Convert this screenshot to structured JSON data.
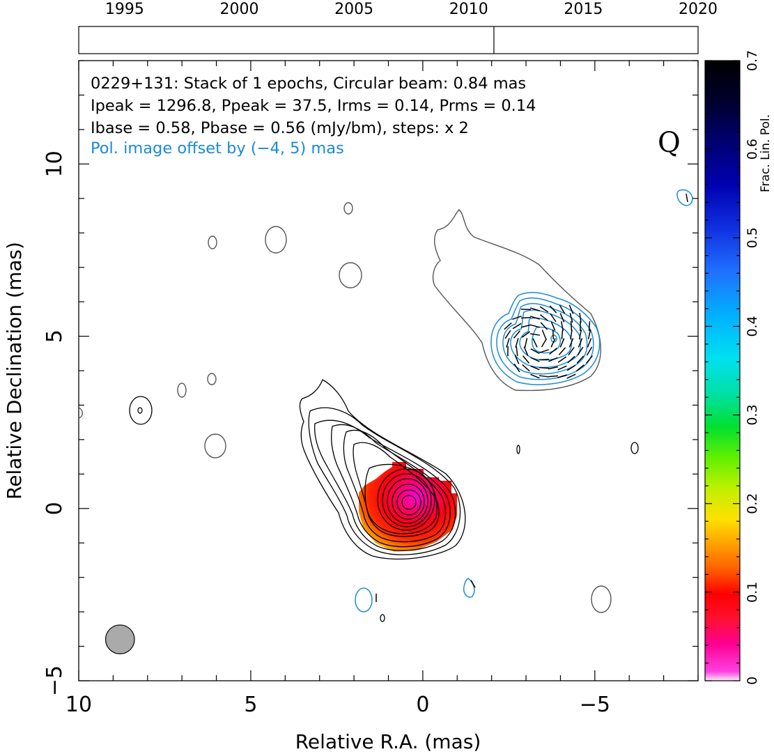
{
  "chart_data": {
    "type": "contour",
    "xlabel": "Relative R.A. (mas)",
    "ylabel": "Relative Declination (mas)",
    "xlim": [
      10,
      -8
    ],
    "ylim": [
      -5,
      13
    ],
    "x_ticks": [
      "10",
      "5",
      "0",
      "−5"
    ],
    "y_ticks": [
      "−5",
      "0",
      "5",
      "10"
    ],
    "grid": false,
    "annotation_lines": [
      "0229+131: Stack of 1 epochs, Circular beam: 0.84 mas",
      "Ipeak = 1296.8, Ppeak = 37.5, Irms = 0.14, Prms = 0.14",
      "Ibase = 0.58, Pbase = 0.56 (mJy/bm), steps: x 2"
    ],
    "offset_note": "Pol. image offset by (−4, 5) mas",
    "band_label": "Q",
    "stats": {
      "source": "0229+131",
      "epochs": 1,
      "beam_mas": 0.84,
      "ipeak": 1296.8,
      "ppeak": 37.5,
      "irms": 0.14,
      "prms": 0.14,
      "ibase": 0.58,
      "pbase": 0.56,
      "step_factor": 2,
      "pol_offset_mas": [
        -4,
        5
      ]
    },
    "timeline": {
      "years": [
        "1995",
        "2000",
        "2005",
        "2010",
        "2015",
        "2020"
      ],
      "range": [
        1993,
        2020
      ],
      "epochs": [
        2011.1
      ]
    },
    "colorbar": {
      "label": "Frac. Lin. Pol.",
      "range": [
        0,
        0.7
      ],
      "ticks": [
        "0",
        "0.1",
        "0.2",
        "0.3",
        "0.4",
        "0.5",
        "0.6",
        "0.7"
      ]
    },
    "beam": {
      "ra": 8.8,
      "dec": -3.8,
      "diameter_mas": 0.84
    },
    "core_peak": {
      "ra": 0.3,
      "dec": 0.2
    },
    "colors": {
      "total_intensity": "#000000",
      "shifted_total_intensity": "#555555",
      "polarized_intensity": "#1a8ad6",
      "beam_fill": "#aaaaaa"
    }
  }
}
